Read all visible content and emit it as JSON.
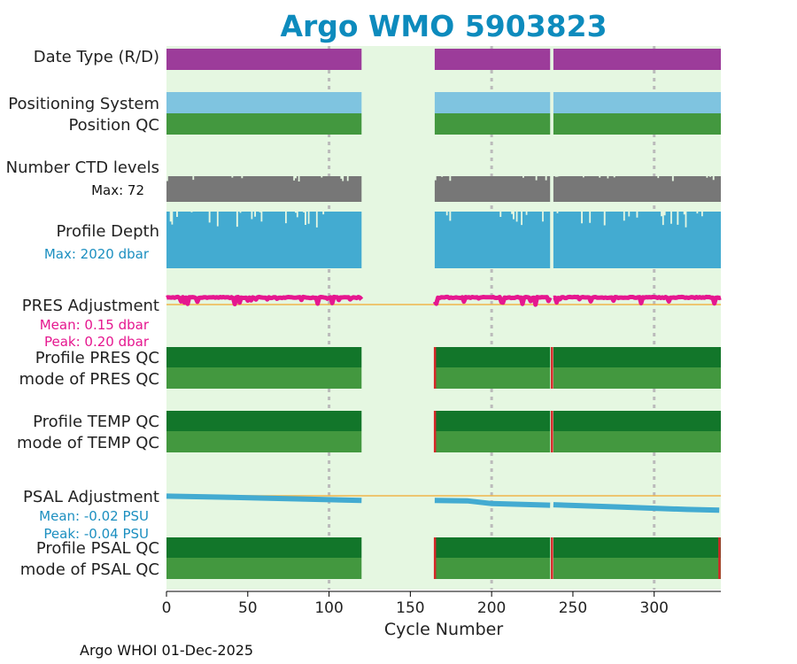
{
  "title": "Argo WMO 5903823",
  "footer": "Argo WHOI 01-Dec-2025",
  "colors": {
    "panel_bg": "#e5f7e1",
    "date_type": "#9c3c9a",
    "positioning": "#7fc4e0",
    "pos_qc": "#43983f",
    "ctd": "#777777",
    "depth": "#43abd1",
    "pres_adj": "#e5178f",
    "zero_line": "#f0b54a",
    "qc_dark": "#12762a",
    "qc_mode": "#43983f",
    "qc_flag": "#d62728",
    "psal_adj": "#43abd1",
    "stat_pink": "#e5178f",
    "stat_blue": "#1c8fc0",
    "grid": "#bbbbbb"
  },
  "chart_data": {
    "type": "strip",
    "xlabel": "Cycle Number",
    "xlim": [
      0,
      341
    ],
    "xticks": [
      0,
      50,
      100,
      150,
      200,
      250,
      300
    ],
    "grid_x": [
      100,
      200,
      300
    ],
    "segments": [
      [
        0,
        120
      ],
      [
        165,
        236
      ],
      [
        238,
        341
      ]
    ],
    "rows": {
      "date_type": {
        "label": "Date Type (R/D)"
      },
      "positioning": {
        "label": "Positioning System",
        "label2": "Position QC"
      },
      "ctd": {
        "label": "Number CTD levels",
        "stat": "Max: 72",
        "max": 72
      },
      "depth": {
        "label": "Profile Depth",
        "stat": "Max: 2020 dbar",
        "max": 2020
      },
      "pres_adj": {
        "label": "PRES Adjustment",
        "stat1": "Mean: 0.15 dbar",
        "stat2": "Peak: 0.20 dbar",
        "mean": 0.15,
        "peak": 0.2
      },
      "pres_qc": {
        "label": "Profile PRES QC",
        "label2": "mode of PRES QC",
        "bad_cycles": [
          165,
          237
        ]
      },
      "temp_qc": {
        "label": "Profile TEMP QC",
        "label2": "mode of TEMP QC",
        "bad_cycles": [
          165,
          237
        ]
      },
      "psal_adj": {
        "label": "PSAL Adjustment",
        "stat1": "Mean: -0.02 PSU",
        "stat2": "Peak: -0.04 PSU",
        "mean": -0.02,
        "peak": -0.04
      },
      "psal_qc": {
        "label": "Profile PSAL QC",
        "label2": "mode of PSAL QC",
        "bad_cycles": [
          165,
          237,
          340
        ]
      }
    },
    "psal_adj_series": {
      "x": [
        0,
        40,
        80,
        120,
        165,
        185,
        200,
        236,
        238,
        280,
        320,
        340
      ],
      "y": [
        -0.001,
        -0.004,
        -0.008,
        -0.012,
        -0.012,
        -0.013,
        -0.02,
        -0.024,
        -0.023,
        -0.029,
        -0.035,
        -0.037
      ]
    }
  }
}
